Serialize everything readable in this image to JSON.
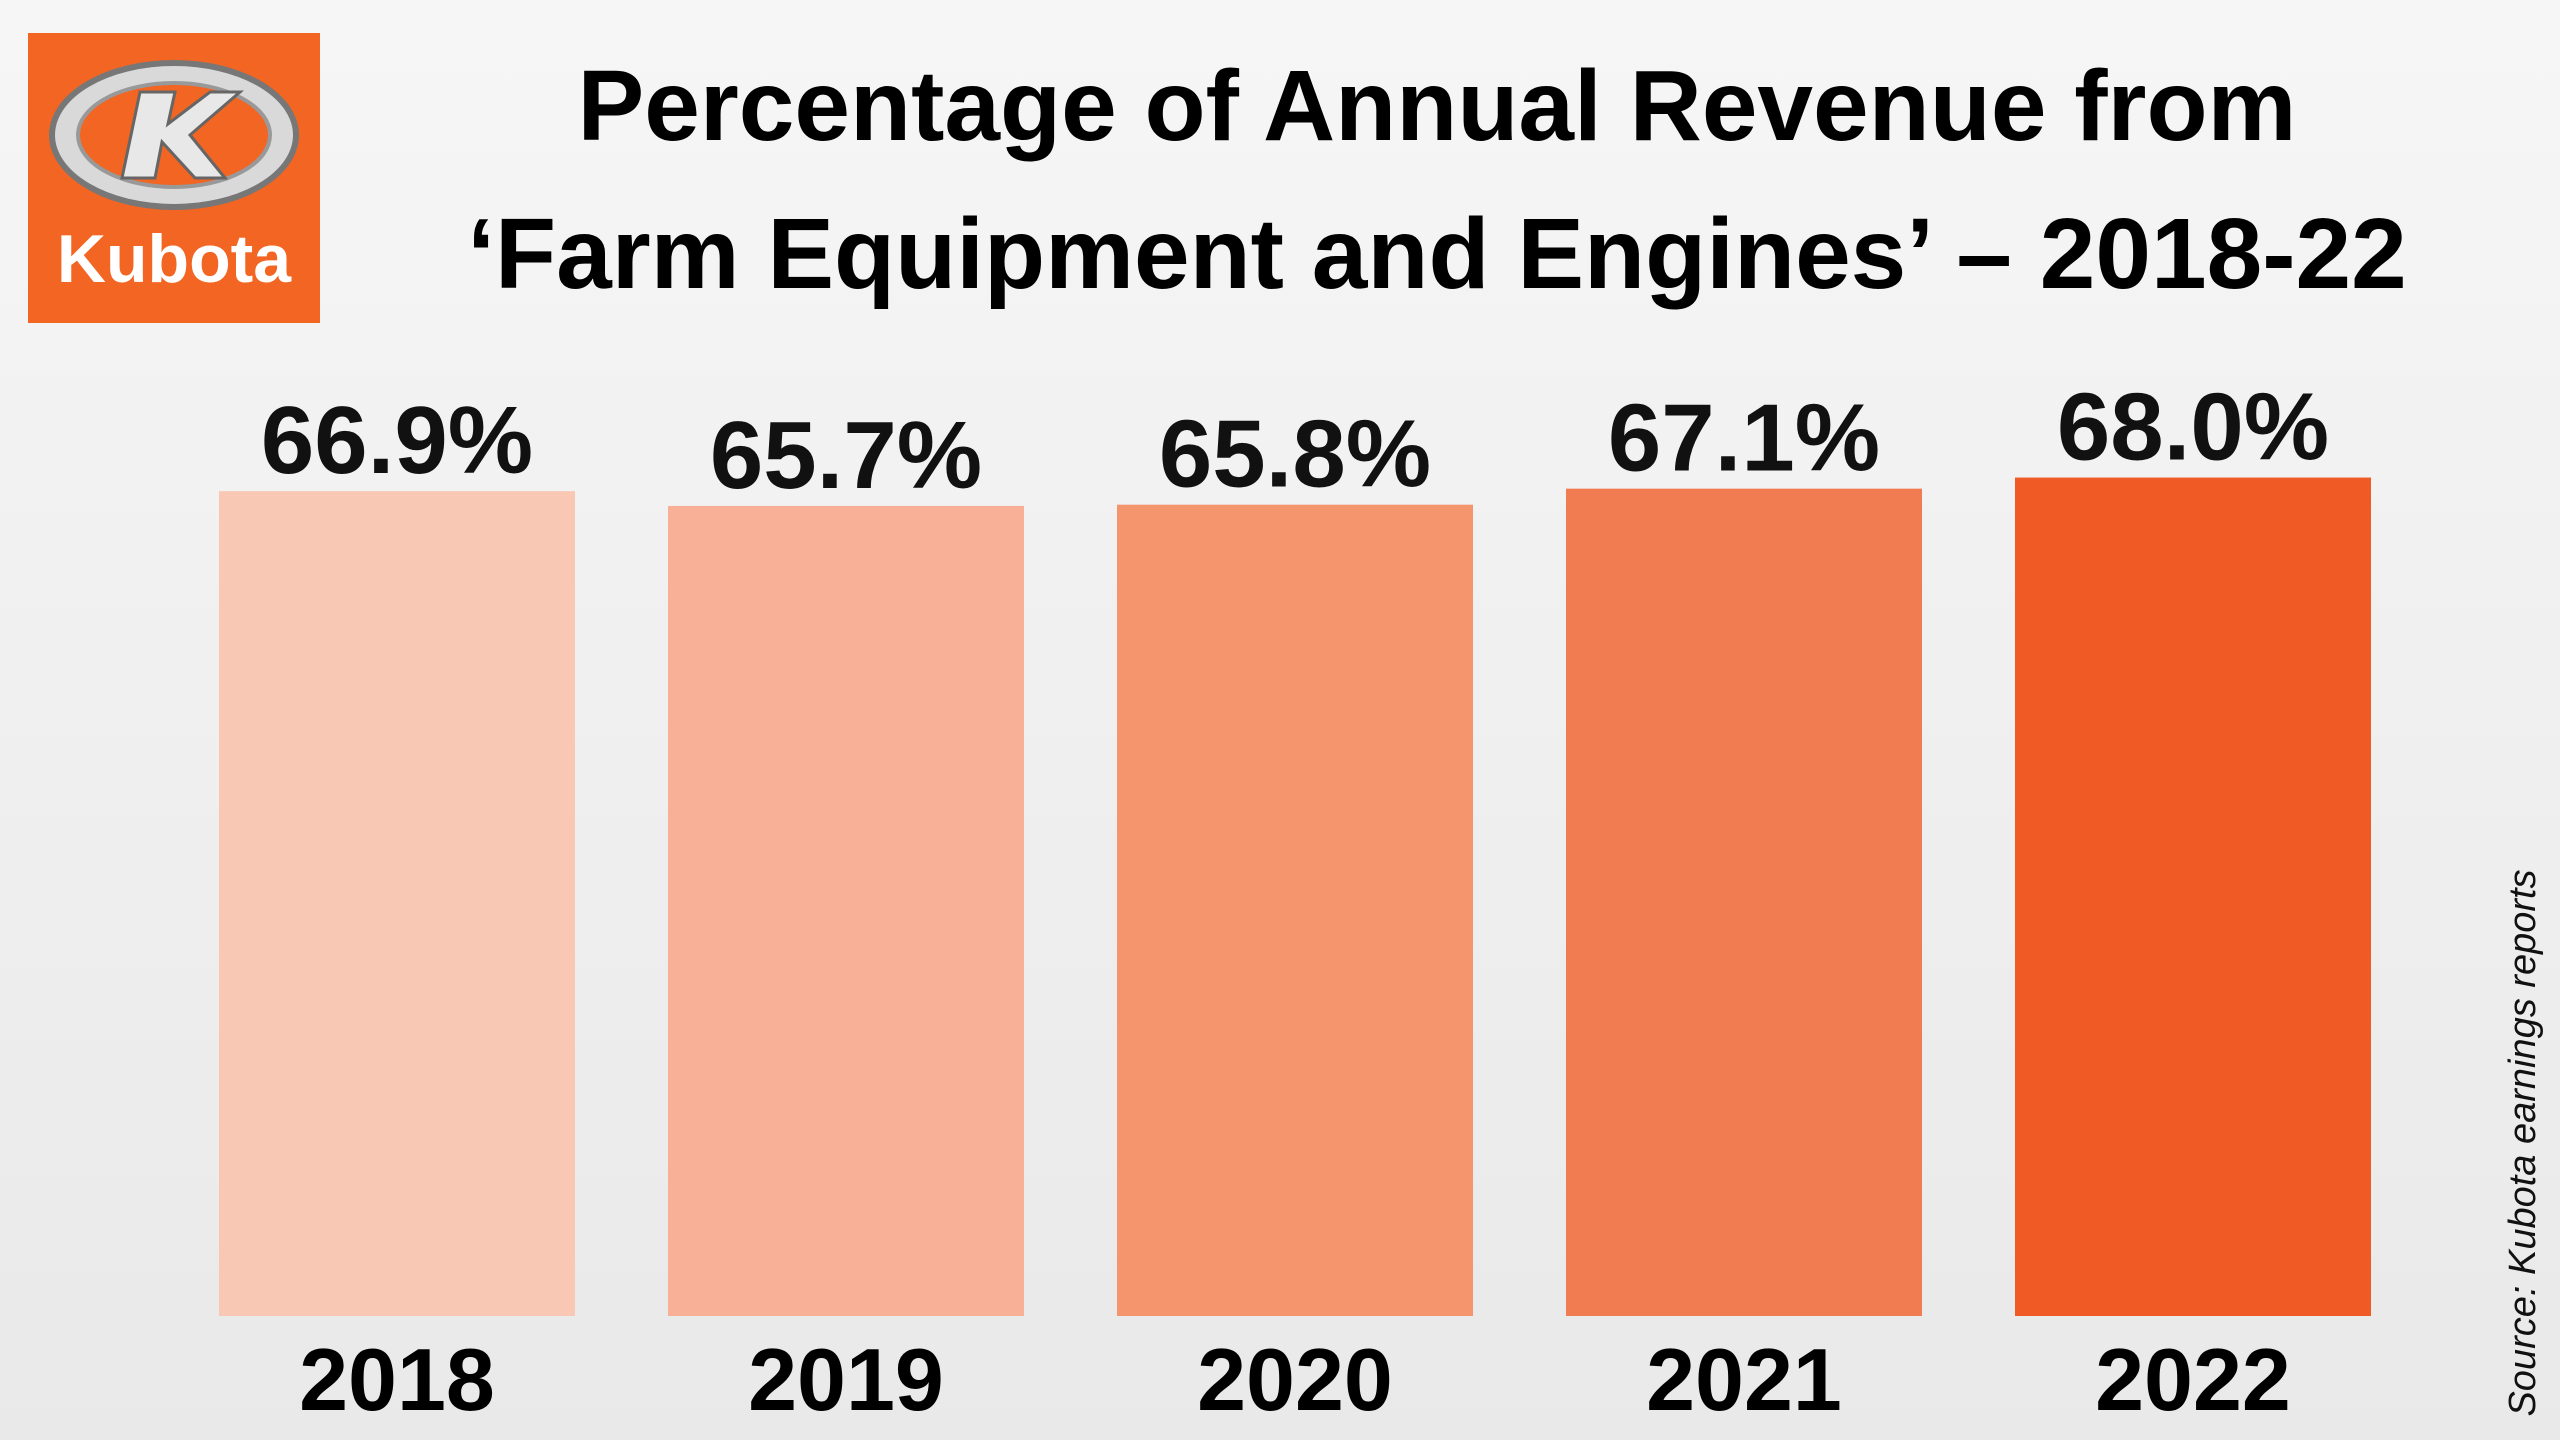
{
  "logo_text": "Kubota",
  "chart_data": {
    "type": "bar",
    "title": [
      "Percentage of Annual Revenue from",
      "‘Farm Equipment and Engines’ – 2018-22"
    ],
    "categories": [
      "2018",
      "2019",
      "2020",
      "2021",
      "2022"
    ],
    "values": [
      66.9,
      65.7,
      65.8,
      67.1,
      68.0
    ],
    "value_labels": [
      "66.9%",
      "65.7%",
      "65.8%",
      "67.1%",
      "68.0%"
    ],
    "colors": [
      "#f8c8b5",
      "#f8b097",
      "#f4956e",
      "#f27c51",
      "#f05a24"
    ],
    "ylim": [
      0,
      100
    ],
    "source": "Source: Kubota earnings reports"
  }
}
